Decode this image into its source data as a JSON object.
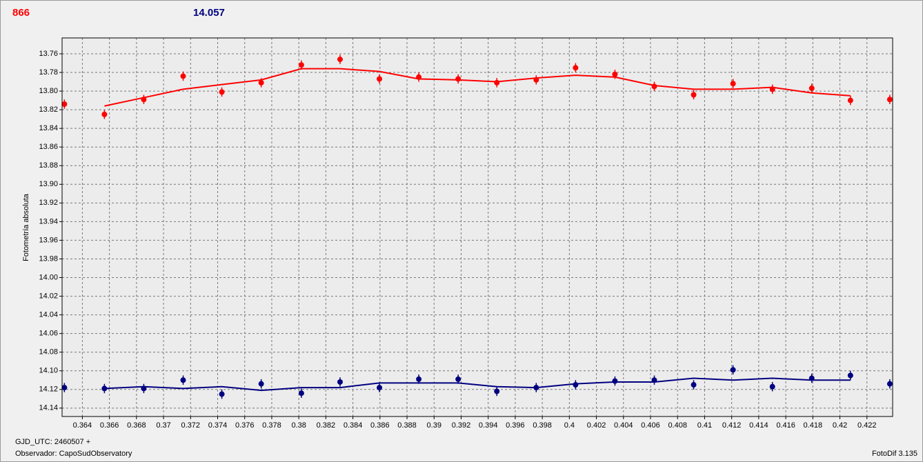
{
  "header": {
    "left_value": "866",
    "right_value": "14.057"
  },
  "chart_data": {
    "type": "scatter",
    "y_label": "Fotometría absoluta",
    "y_inverted": true,
    "grid": true,
    "x": [
      0.36267,
      0.36563,
      0.36854,
      0.37145,
      0.37431,
      0.37722,
      0.38019,
      0.38305,
      0.38596,
      0.38887,
      0.39178,
      0.39464,
      0.39755,
      0.40046,
      0.40337,
      0.40628,
      0.40919,
      0.4121,
      0.41501,
      0.41792,
      0.42078,
      0.42369
    ],
    "series": [
      {
        "color": "#ff0000",
        "style": "points",
        "error": 0.005,
        "values": [
          13.814,
          13.825,
          13.809,
          13.784,
          13.801,
          13.791,
          13.772,
          13.766,
          13.787,
          13.785,
          13.787,
          13.791,
          13.788,
          13.775,
          13.782,
          13.795,
          13.804,
          13.792,
          13.798,
          13.797,
          13.81,
          13.809
        ]
      },
      {
        "color": "#ff0000",
        "style": "line",
        "values": [
          null,
          13.816,
          13.807,
          13.798,
          13.793,
          13.788,
          13.776,
          13.776,
          13.779,
          13.787,
          13.788,
          13.79,
          13.786,
          13.783,
          13.785,
          13.794,
          13.798,
          13.798,
          13.796,
          13.802,
          13.805,
          null
        ]
      },
      {
        "color": "#000080",
        "style": "points",
        "error": 0.005,
        "values": [
          14.118,
          14.119,
          14.119,
          14.11,
          14.125,
          14.114,
          14.124,
          14.112,
          14.118,
          14.109,
          14.109,
          14.122,
          14.118,
          14.115,
          14.111,
          14.11,
          14.115,
          14.099,
          14.117,
          14.108,
          14.105,
          14.114
        ]
      },
      {
        "color": "#000080",
        "style": "line",
        "values": [
          null,
          14.119,
          14.117,
          14.119,
          14.117,
          14.121,
          14.118,
          14.118,
          14.113,
          14.113,
          14.113,
          14.117,
          14.118,
          14.114,
          14.112,
          14.112,
          14.108,
          14.11,
          14.108,
          14.11,
          14.11,
          null
        ]
      }
    ],
    "xlim": [
      0.3625,
      0.4239
    ],
    "xticks": [
      0.364,
      0.366,
      0.368,
      0.37,
      0.372,
      0.374,
      0.376,
      0.378,
      0.38,
      0.382,
      0.384,
      0.386,
      0.388,
      0.39,
      0.392,
      0.394,
      0.396,
      0.398,
      0.4,
      0.402,
      0.404,
      0.406,
      0.408,
      0.41,
      0.412,
      0.414,
      0.416,
      0.418,
      0.42,
      0.422
    ],
    "ylim": [
      13.743,
      14.149
    ],
    "yticks": [
      13.76,
      13.78,
      {
        "value": 13.8,
        "label": "13.80"
      },
      13.82,
      13.84,
      13.86,
      13.88,
      {
        "value": 13.9,
        "label": "13.90"
      },
      13.92,
      13.94,
      13.96,
      13.98,
      {
        "value": 14,
        "label": "14.00"
      },
      14.02,
      14.04,
      14.06,
      14.08,
      {
        "value": 14.1,
        "label": "14.10"
      },
      14.12,
      14.14
    ]
  },
  "footer": {
    "date": "GJD_UTC: 2460507 +",
    "observer": "Observador: CapoSudObservatory",
    "software": "FotoDif 3.135"
  }
}
